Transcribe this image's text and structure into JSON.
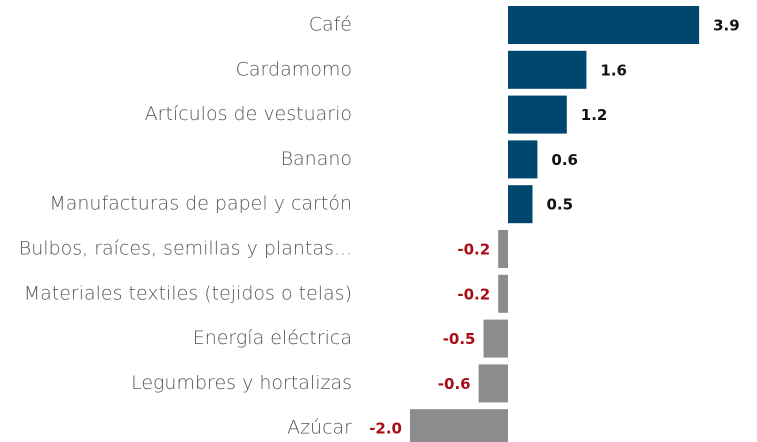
{
  "chart_data": {
    "type": "bar",
    "orientation": "horizontal",
    "categories": [
      "Café",
      "Cardamomo",
      "Artículos de vestuario",
      "Banano",
      "Manufacturas de papel y cartón",
      "Bulbos, raíces, semillas y plantas...",
      "Materiales textiles (tejidos o telas)",
      "Energía eléctrica",
      "Legumbres y hortalizas",
      "Azúcar"
    ],
    "values": [
      3.9,
      1.6,
      1.2,
      0.6,
      0.5,
      -0.2,
      -0.2,
      -0.5,
      -0.6,
      -2.0
    ],
    "value_labels": [
      "3.9",
      "1.6",
      "1.2",
      "0.6",
      "0.5",
      "-0.2",
      "-0.2",
      "-0.5",
      "-0.6",
      "-2.0"
    ],
    "colors": {
      "positive": "#00476f",
      "negative": "#8c8c8c"
    },
    "label_colors": {
      "positive": "#111111",
      "negative": "#a50f15"
    }
  }
}
